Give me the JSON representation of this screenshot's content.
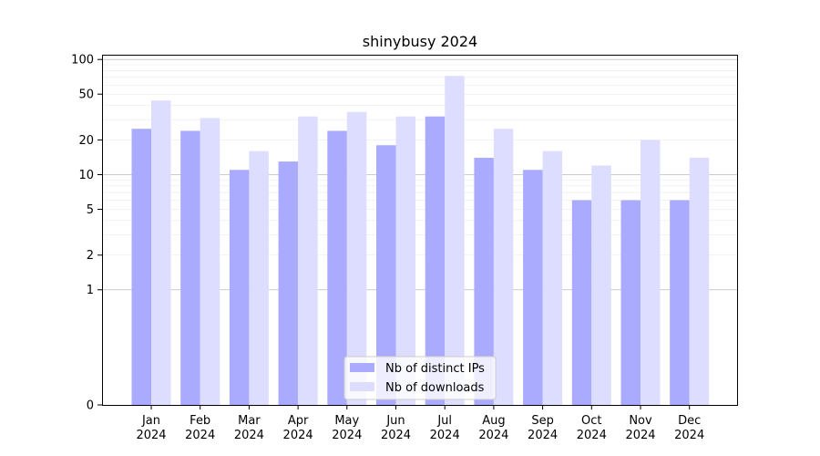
{
  "chart_data": {
    "type": "bar",
    "title": "shinybusy 2024",
    "xlabel": "",
    "ylabel": "",
    "y_scale": "symlog",
    "ylim": [
      0,
      110
    ],
    "y_ticks": [
      0,
      1,
      2,
      5,
      10,
      20,
      50,
      100
    ],
    "categories": [
      [
        "Jan",
        "2024"
      ],
      [
        "Feb",
        "2024"
      ],
      [
        "Mar",
        "2024"
      ],
      [
        "Apr",
        "2024"
      ],
      [
        "May",
        "2024"
      ],
      [
        "Jun",
        "2024"
      ],
      [
        "Jul",
        "2024"
      ],
      [
        "Aug",
        "2024"
      ],
      [
        "Sep",
        "2024"
      ],
      [
        "Oct",
        "2024"
      ],
      [
        "Nov",
        "2024"
      ],
      [
        "Dec",
        "2024"
      ]
    ],
    "series": [
      {
        "name": "Nb of distinct IPs",
        "color": "#aaaaff",
        "values": [
          25,
          24,
          11,
          13,
          24,
          18,
          32,
          14,
          11,
          6,
          6,
          6
        ]
      },
      {
        "name": "Nb of downloads",
        "color": "#ddddff",
        "values": [
          44,
          31,
          16,
          32,
          35,
          32,
          72,
          25,
          16,
          12,
          20,
          14
        ]
      }
    ],
    "legend_position": "bottom-center",
    "grid": "horizontal"
  }
}
